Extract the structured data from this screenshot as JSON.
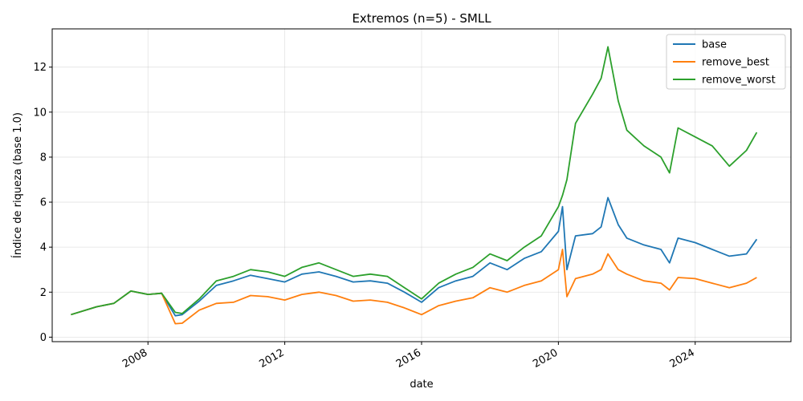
{
  "chart_data": {
    "type": "line",
    "title": "Extremos (n=5) - SMLL",
    "xlabel": "date",
    "ylabel": "Índice de riqueza (base 1.0)",
    "x_ticks": [
      2008,
      2012,
      2016,
      2020,
      2024
    ],
    "x_tick_labels": [
      "2008",
      "2012",
      "2016",
      "2020",
      "2024"
    ],
    "xlim": [
      2005.2,
      2026.8
    ],
    "y_ticks": [
      0,
      2,
      4,
      6,
      8,
      10,
      12
    ],
    "y_tick_labels": [
      "0",
      "2",
      "4",
      "6",
      "8",
      "10",
      "12"
    ],
    "ylim": [
      -0.2,
      13.7
    ],
    "grid": true,
    "legend_position": "top-right",
    "x": [
      2005.75,
      2006.5,
      2007.0,
      2007.5,
      2008.0,
      2008.4,
      2008.8,
      2009.0,
      2009.5,
      2010.0,
      2010.5,
      2011.0,
      2011.5,
      2012.0,
      2012.5,
      2013.0,
      2013.5,
      2014.0,
      2014.5,
      2015.0,
      2015.5,
      2016.0,
      2016.5,
      2017.0,
      2017.5,
      2018.0,
      2018.5,
      2019.0,
      2019.5,
      2020.0,
      2020.12,
      2020.25,
      2020.5,
      2021.0,
      2021.25,
      2021.45,
      2021.75,
      2022.0,
      2022.5,
      2023.0,
      2023.25,
      2023.5,
      2024.0,
      2024.5,
      2025.0,
      2025.5,
      2025.8
    ],
    "series": [
      {
        "name": "base",
        "color": "#1f77b4",
        "values": [
          1.0,
          1.35,
          1.5,
          2.05,
          1.9,
          1.95,
          0.95,
          1.0,
          1.6,
          2.3,
          2.5,
          2.75,
          2.6,
          2.45,
          2.8,
          2.9,
          2.7,
          2.45,
          2.5,
          2.4,
          2.0,
          1.55,
          2.2,
          2.5,
          2.7,
          3.3,
          3.0,
          3.5,
          3.8,
          4.7,
          5.8,
          3.0,
          4.5,
          4.6,
          4.9,
          6.2,
          5.0,
          4.4,
          4.1,
          3.9,
          3.3,
          4.4,
          4.2,
          3.9,
          3.6,
          3.7,
          4.35
        ]
      },
      {
        "name": "remove_best",
        "color": "#ff7f0e",
        "values": [
          1.0,
          1.35,
          1.5,
          2.05,
          1.9,
          1.95,
          0.6,
          0.62,
          1.2,
          1.5,
          1.55,
          1.85,
          1.8,
          1.65,
          1.9,
          2.0,
          1.85,
          1.6,
          1.65,
          1.55,
          1.3,
          1.0,
          1.4,
          1.6,
          1.75,
          2.2,
          2.0,
          2.3,
          2.5,
          3.0,
          3.9,
          1.8,
          2.6,
          2.8,
          3.0,
          3.7,
          3.0,
          2.8,
          2.5,
          2.4,
          2.1,
          2.65,
          2.6,
          2.4,
          2.2,
          2.4,
          2.65
        ]
      },
      {
        "name": "remove_worst",
        "color": "#2ca02c",
        "values": [
          1.0,
          1.35,
          1.5,
          2.05,
          1.9,
          1.95,
          1.1,
          1.05,
          1.7,
          2.5,
          2.7,
          3.0,
          2.9,
          2.7,
          3.1,
          3.3,
          3.0,
          2.7,
          2.8,
          2.7,
          2.2,
          1.7,
          2.4,
          2.8,
          3.1,
          3.7,
          3.4,
          4.0,
          4.5,
          5.8,
          6.3,
          7.0,
          9.5,
          10.8,
          11.5,
          12.9,
          10.5,
          9.2,
          8.5,
          8.0,
          7.3,
          9.3,
          8.9,
          8.5,
          7.6,
          8.3,
          9.1
        ]
      }
    ]
  }
}
